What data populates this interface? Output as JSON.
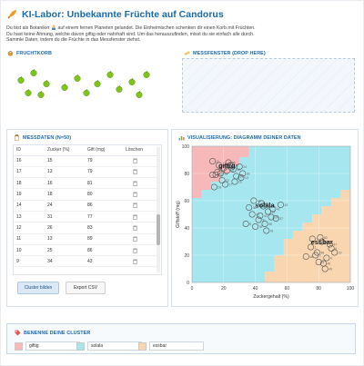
{
  "header": {
    "title": "KI-Labor: Unbekannte Früchte auf Candorus",
    "logo_icon": "rocket-icon"
  },
  "intro": {
    "line1_before": "Du bist als Botaniker",
    "line1_after": "auf einem fernen Planeten gelandet. Die Einheimischen schenken dir einen Korb mit Früchten.",
    "line2": "Du hast keine Ahnung, welche davon giftig oder nahrhaft sind. Um das herauszufinden, misst du sie einfach alle durch.",
    "line3": "Sammle Daten, indem du die Früchte in das Messfenster ziehst."
  },
  "basket": {
    "label": "FRUCHTKORB",
    "fruit_color": "#7fc41d"
  },
  "dropzone": {
    "label": "MESSFENSTER (DROP HERE)"
  },
  "data_panel": {
    "label": "MESSDATEN (N=50)",
    "columns": [
      "ID",
      "Zucker (%)",
      "Gift (mg)",
      "Löschen"
    ],
    "rows": [
      [
        "16",
        "15",
        "79"
      ],
      [
        "17",
        "13",
        "79"
      ],
      [
        "18",
        "16",
        "81"
      ],
      [
        "19",
        "18",
        "80"
      ],
      [
        "14",
        "24",
        "86"
      ],
      [
        "13",
        "31",
        "77"
      ],
      [
        "12",
        "26",
        "83"
      ],
      [
        "11",
        "13",
        "89"
      ],
      [
        "10",
        "25",
        "86"
      ],
      [
        "9",
        "34",
        "43"
      ]
    ],
    "cluster_button": "Cluster bilden",
    "export_button": "Export CSV"
  },
  "visualization": {
    "label": "VISUALISIERUNG: DIAGRAMM DEINER DATEN"
  },
  "chart_data": {
    "type": "scatter",
    "title": "",
    "xlabel": "Zuckergehalt (%)",
    "ylabel": "Giftstoff (mg)",
    "xlim": [
      0,
      100
    ],
    "ylim": [
      0,
      100
    ],
    "xticks": [
      0,
      20,
      40,
      60,
      80,
      100
    ],
    "yticks": [
      0,
      20,
      40,
      60,
      80,
      100
    ],
    "grid": true,
    "regions": [
      {
        "name": "giftig",
        "color": "#f6b8b8",
        "label_at": [
          22,
          84
        ]
      },
      {
        "name": "solala",
        "color": "#a6e6ef",
        "label_at": [
          46,
          55
        ]
      },
      {
        "name": "essbar",
        "color": "#f9d6b0",
        "label_at": [
          82,
          28
        ]
      }
    ],
    "series": [
      {
        "name": "giftig",
        "x": [
          15,
          13,
          16,
          18,
          24,
          31,
          26,
          13,
          25,
          20,
          22,
          28,
          19,
          17,
          30,
          23,
          27,
          21,
          32,
          14
        ],
        "y": [
          79,
          79,
          81,
          80,
          86,
          77,
          83,
          89,
          86,
          84,
          82,
          78,
          75,
          86,
          85,
          88,
          74,
          72,
          80,
          70
        ],
        "point_labels": [
          "16",
          "17",
          "18",
          "19",
          "14",
          "13",
          "12",
          "11",
          "10",
          "8",
          "20",
          "21",
          "22",
          "23",
          "24",
          "25",
          "26",
          "27",
          "28",
          "29"
        ]
      },
      {
        "name": "solala",
        "x": [
          34,
          38,
          42,
          45,
          48,
          50,
          40,
          36,
          53,
          46,
          44,
          39,
          47,
          51,
          56,
          43
        ],
        "y": [
          43,
          50,
          46,
          56,
          52,
          48,
          41,
          55,
          47,
          43,
          58,
          60,
          38,
          54,
          57,
          49
        ],
        "point_labels": [
          "9",
          "30",
          "31",
          "32",
          "33",
          "34",
          "35",
          "36",
          "37",
          "38",
          "39",
          "40",
          "41",
          "42",
          "43",
          "44"
        ]
      },
      {
        "name": "essbar",
        "x": [
          75,
          78,
          82,
          85,
          80,
          88,
          76,
          83,
          79,
          87,
          72,
          84,
          81,
          90
        ],
        "y": [
          26,
          20,
          30,
          18,
          15,
          25,
          32,
          14,
          22,
          28,
          19,
          10,
          33,
          22
        ],
        "point_labels": [
          "1",
          "2",
          "3",
          "4",
          "5",
          "6",
          "7",
          "45",
          "46",
          "47",
          "48",
          "49",
          "50",
          "15"
        ]
      }
    ]
  },
  "cluster_names": {
    "label": "BENENNE DEINE CLUSTER",
    "items": [
      {
        "value": "giftig",
        "color": "#f6b8b8"
      },
      {
        "value": "solala",
        "color": "#a6e6ef"
      },
      {
        "value": "essbar",
        "color": "#f9d6b0"
      }
    ]
  }
}
